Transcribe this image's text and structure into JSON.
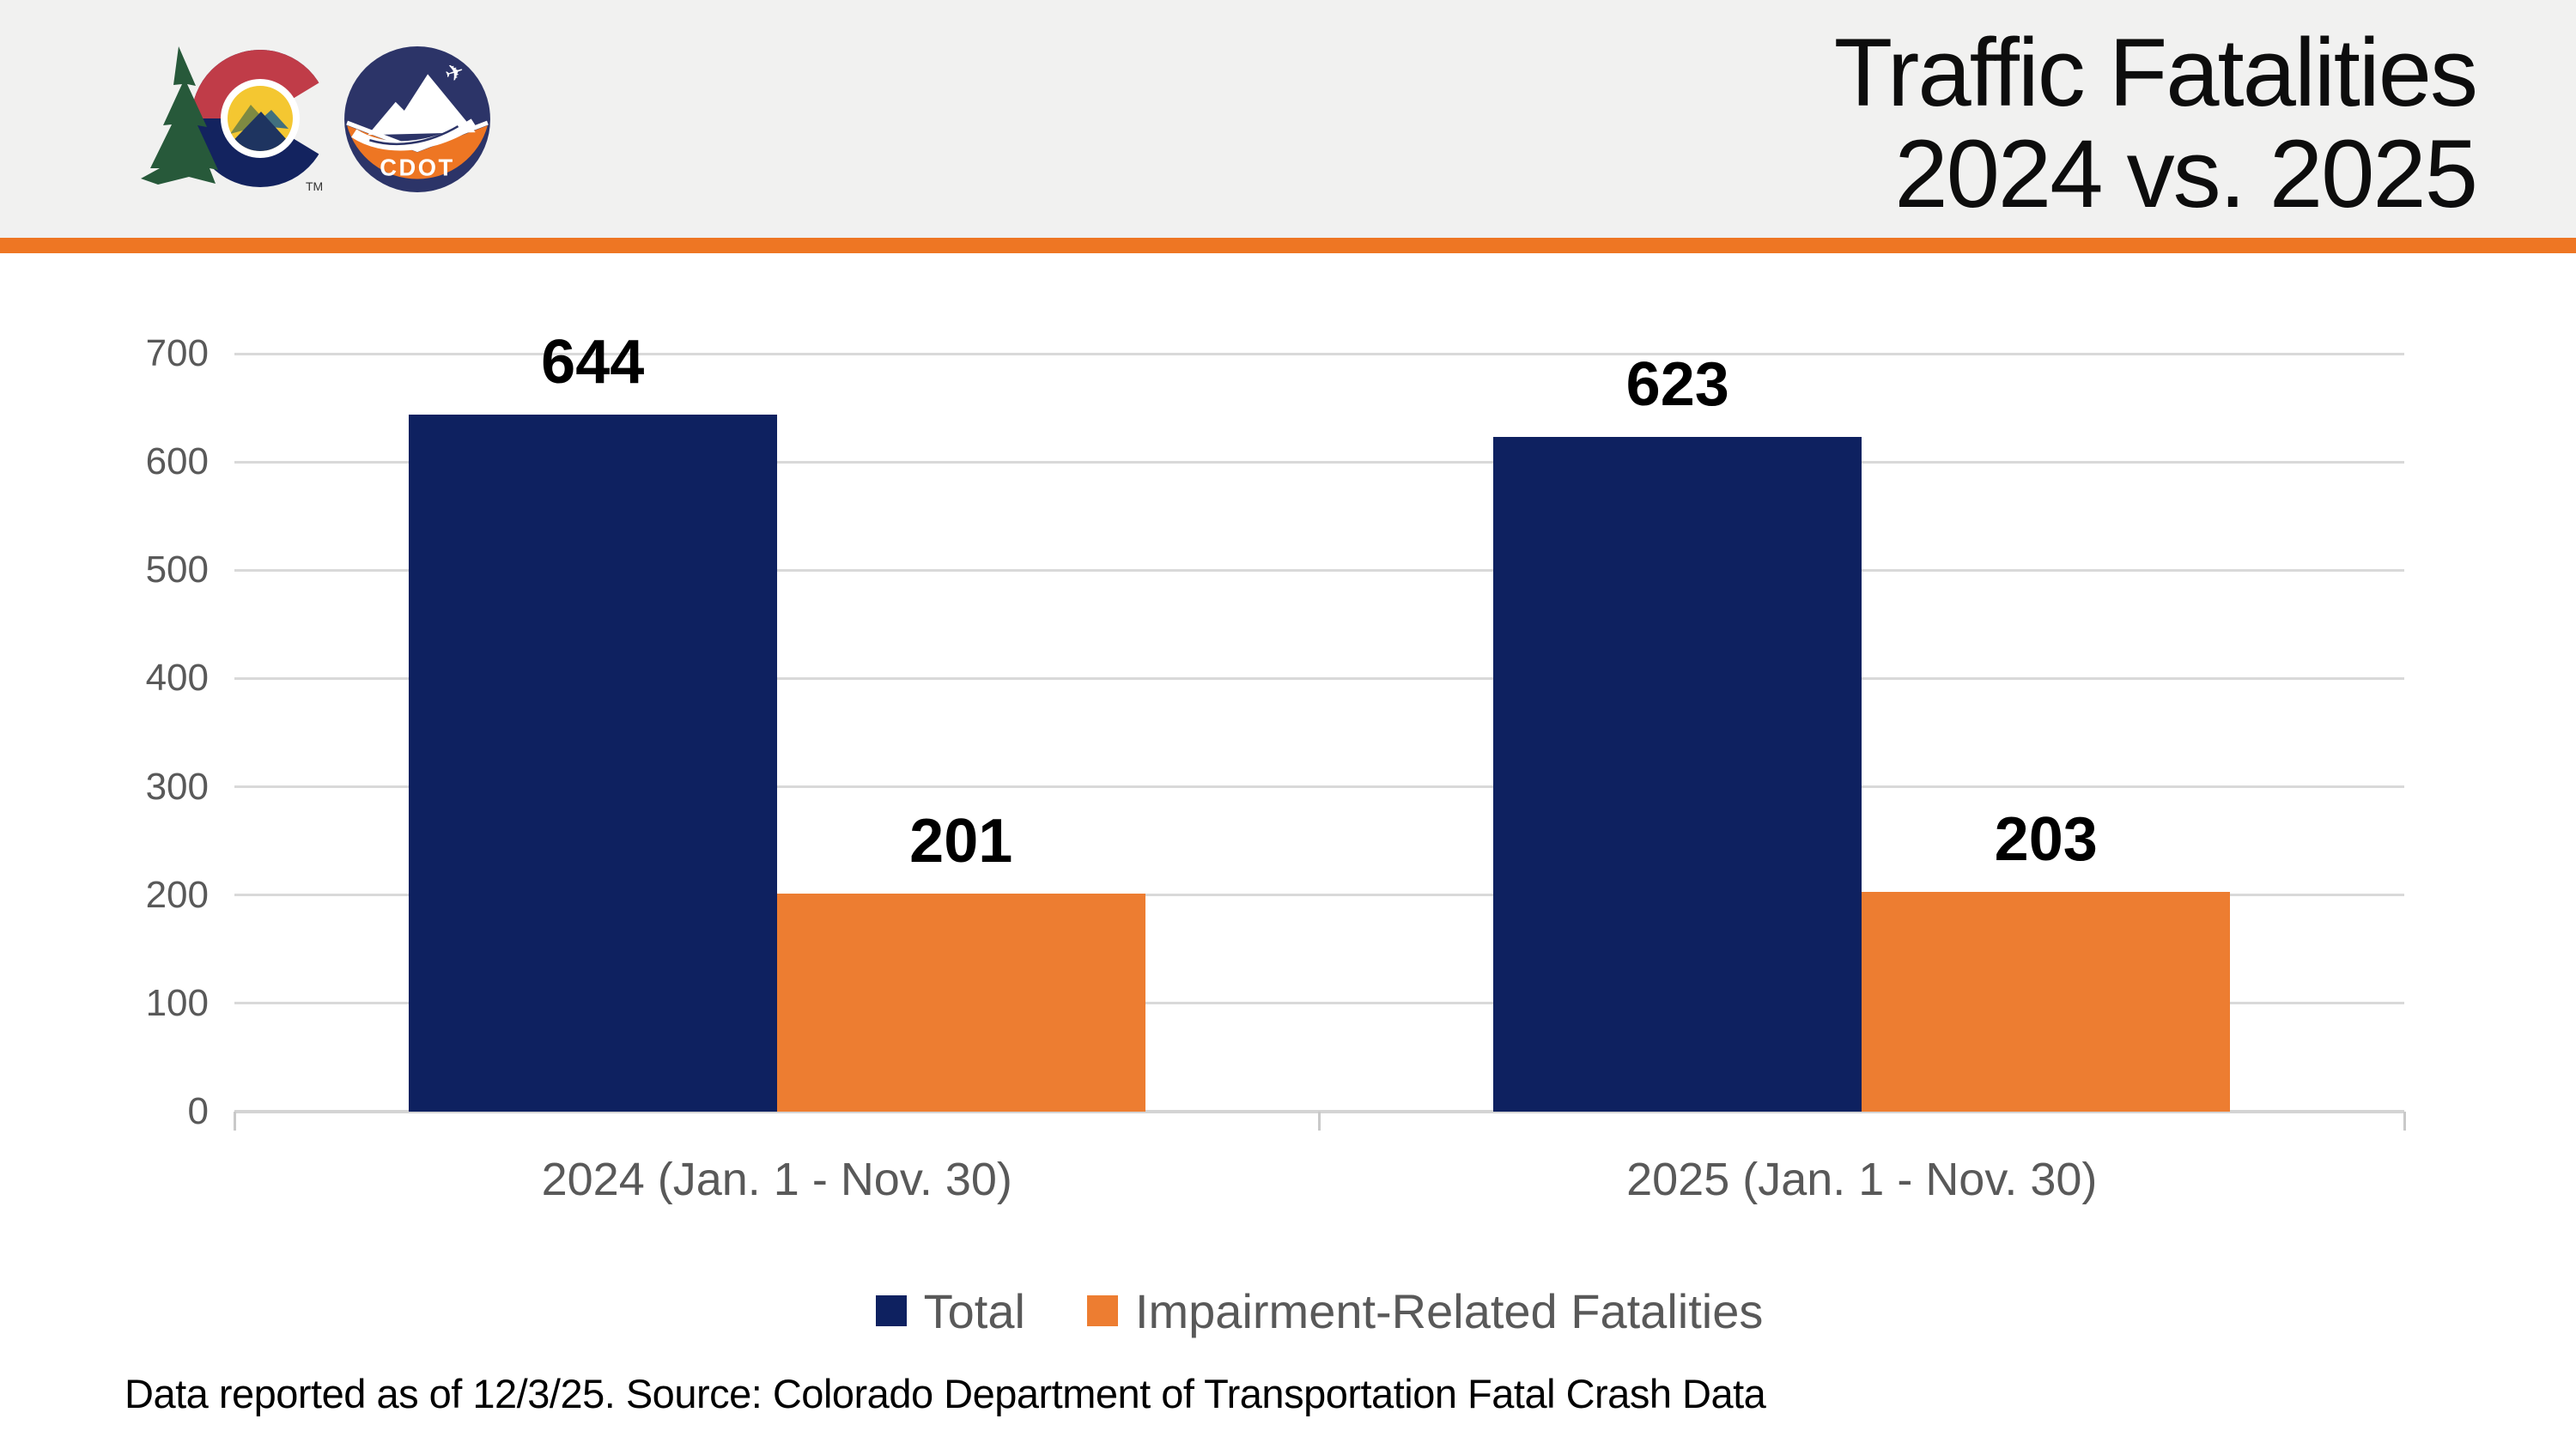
{
  "header": {
    "title_line1": "Traffic Fatalities",
    "title_line2": "2024 vs. 2025",
    "logo": {
      "cdot_label": "CDOT",
      "trademark": "TM"
    }
  },
  "colors": {
    "header_bg": "#F1F1F0",
    "accent_orange_band": "#EE7623",
    "bar_navy": "#0E2160",
    "bar_orange": "#ED7D31",
    "axis_text_gray": "#595959",
    "gridline_gray": "#D9D9D9",
    "data_label_black": "#000000"
  },
  "chart_data": {
    "type": "bar",
    "categories": [
      "2024 (Jan. 1 - Nov. 30)",
      "2025 (Jan. 1 - Nov. 30)"
    ],
    "series": [
      {
        "name": "Total",
        "color": "#0E2160",
        "values": [
          644,
          623
        ]
      },
      {
        "name": "Impairment-Related Fatalities",
        "color": "#ED7D31",
        "values": [
          201,
          203
        ]
      }
    ],
    "ylim": [
      0,
      700
    ],
    "yticks": [
      0,
      100,
      200,
      300,
      400,
      500,
      600,
      700
    ],
    "grid": true,
    "legend_position": "bottom",
    "data_labels": true,
    "title": "Traffic Fatalities 2024 vs. 2025"
  },
  "footer": {
    "note": "Data reported as of 12/3/25. Source: Colorado Department of Transportation Fatal Crash Data"
  }
}
